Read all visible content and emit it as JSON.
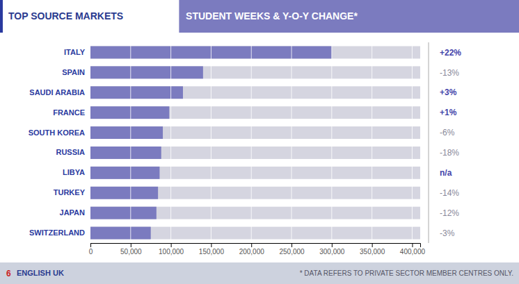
{
  "chart_data": {
    "type": "bar",
    "orientation": "horizontal",
    "title": "TOP SOURCE MARKETS",
    "subtitle": "STUDENT WEEKS & Y-O-Y CHANGE*",
    "categories": [
      "ITALY",
      "SPAIN",
      "SAUDI ARABIA",
      "FRANCE",
      "SOUTH KOREA",
      "RUSSIA",
      "LIBYA",
      "TURKEY",
      "JAPAN",
      "SWITZERLAND"
    ],
    "values": [
      300000,
      140000,
      115000,
      98000,
      90000,
      88000,
      86000,
      84000,
      82000,
      75000
    ],
    "changes": [
      "+22%",
      "-13%",
      "+3%",
      "+1%",
      "-6%",
      "-18%",
      "n/a",
      "-14%",
      "-12%",
      "-3%"
    ],
    "color": "#7b7bbf",
    "xlim": [
      0,
      410000
    ],
    "xticks": [
      0,
      {
        "value": 50000,
        "label": "50,000"
      },
      {
        "value": 100000,
        "label": "100,000"
      },
      {
        "value": 150000,
        "label": "150,000"
      },
      {
        "value": 200000,
        "label": "200,000"
      },
      {
        "value": 250000,
        "label": "250,000"
      },
      {
        "value": 300000,
        "label": "300,000"
      },
      {
        "value": 350000,
        "label": "350,000"
      },
      {
        "value": 400000,
        "label": "400,000"
      }
    ],
    "grid": true,
    "annotations": [
      "6",
      "ENGLISH UK",
      "* DATA REFERS TO PRIVATE SECTOR MEMBER CENTRES ONLY."
    ]
  }
}
